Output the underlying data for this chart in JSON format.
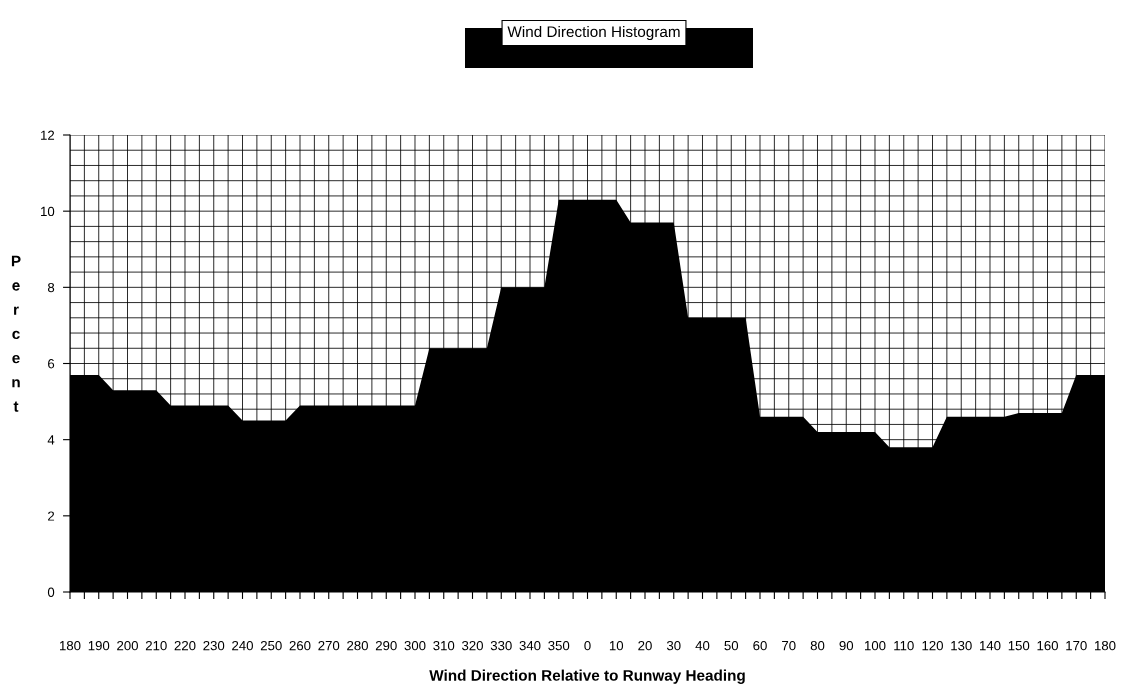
{
  "chart_data": {
    "type": "area",
    "title": "Wind Direction Histogram",
    "xlabel": "Wind Direction Relative to Runway Heading",
    "ylabel": "Percent",
    "categories": [
      "180",
      null,
      "190",
      null,
      "200",
      null,
      "210",
      null,
      "220",
      null,
      "230",
      null,
      "240",
      null,
      "250",
      null,
      "260",
      null,
      "270",
      null,
      "280",
      null,
      "290",
      null,
      "300",
      null,
      "310",
      null,
      "320",
      null,
      "330",
      null,
      "340",
      null,
      "350",
      null,
      "0",
      null,
      "10",
      null,
      "20",
      null,
      "30",
      null,
      "40",
      null,
      "50",
      null,
      "60",
      null,
      "70",
      null,
      "80",
      null,
      "90",
      null,
      "100",
      null,
      "110",
      null,
      "120",
      null,
      "130",
      null,
      "140",
      null,
      "150",
      null,
      "160",
      null,
      "170",
      null,
      "180"
    ],
    "series": [
      {
        "color": "#000000",
        "values": [
          5.7,
          5.7,
          5.7,
          5.3,
          5.3,
          5.3,
          5.3,
          4.9,
          4.9,
          4.9,
          4.9,
          4.9,
          4.5,
          4.5,
          4.5,
          4.5,
          4.9,
          4.9,
          4.9,
          4.9,
          4.9,
          4.9,
          4.9,
          4.9,
          4.9,
          6.4,
          6.4,
          6.4,
          6.4,
          6.4,
          8.0,
          8.0,
          8.0,
          8.0,
          10.3,
          10.3,
          10.3,
          10.3,
          10.3,
          9.7,
          9.7,
          9.7,
          9.7,
          7.2,
          7.2,
          7.2,
          7.2,
          7.2,
          4.6,
          4.6,
          4.6,
          4.6,
          4.2,
          4.2,
          4.2,
          4.2,
          4.2,
          3.8,
          3.8,
          3.8,
          3.8,
          4.6,
          4.6,
          4.6,
          4.6,
          4.6,
          4.7,
          4.7,
          4.7,
          4.7,
          5.7,
          5.7,
          5.7
        ]
      }
    ],
    "ylim": [
      0,
      12
    ],
    "yticks": [
      0,
      2,
      4,
      6,
      8,
      10,
      12
    ],
    "grid": true
  }
}
